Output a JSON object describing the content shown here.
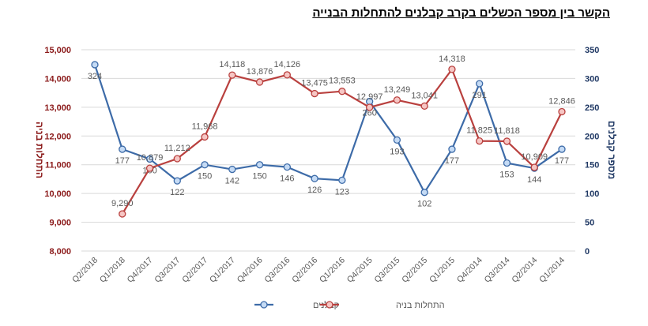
{
  "chart_data": {
    "type": "line",
    "title": "הקשר בין מספר הכשלים בקרב קבלנים להתחלות הבנייה",
    "categories": [
      "Q2/2018",
      "Q1/2018",
      "Q4/2017",
      "Q3/2017",
      "Q2/2017",
      "Q1/2017",
      "Q4/2016",
      "Q3/2016",
      "Q2/2016",
      "Q1/2016",
      "Q4/2015",
      "Q3/2015",
      "Q2/2015",
      "Q1/2015",
      "Q4/2014",
      "Q3/2014",
      "Q2/2014",
      "Q1/2014"
    ],
    "series": [
      {
        "name": "קבלנים",
        "axis": "right",
        "color": "#3D6BA8",
        "values": [
          324,
          177,
          160,
          122,
          150,
          142,
          150,
          146,
          126,
          123,
          260,
          193,
          102,
          177,
          291,
          153,
          144,
          177
        ]
      },
      {
        "name": "התחלות בניה",
        "axis": "left",
        "color": "#B9403E",
        "values": [
          null,
          9290,
          10879,
          11212,
          11968,
          14118,
          13876,
          14126,
          13475,
          13553,
          12997,
          13249,
          13041,
          14318,
          11825,
          11818,
          10909,
          12846
        ]
      }
    ],
    "ylabel_left": "התחלות בניה",
    "ylabel_right": "מספר קבלנים",
    "ylim_left": [
      8000,
      15000
    ],
    "ylim_right": [
      0,
      350
    ],
    "yticks_left": [
      "8,000",
      "9,000",
      "10,000",
      "11,000",
      "12,000",
      "13,000",
      "14,000",
      "15,000"
    ],
    "yticks_right": [
      "0",
      "50",
      "100",
      "150",
      "200",
      "250",
      "300",
      "350"
    ],
    "grid": true,
    "legend": "bottom",
    "left_axis_color": "#8B1A1A",
    "right_axis_color": "#1F3864"
  }
}
